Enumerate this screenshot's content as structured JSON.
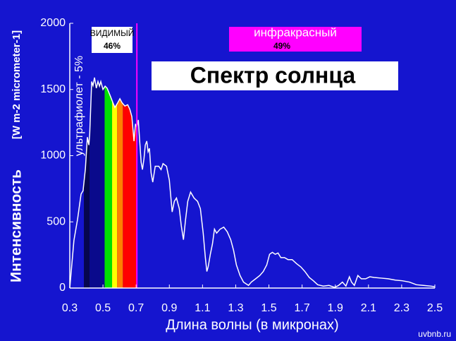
{
  "chart_data": {
    "type": "line",
    "title": "Спектр солнца",
    "xlabel": "Длина волны (в микронах)",
    "ylabel": "Интенсивность",
    "ylabel_units": "[W m-2 micrometer-1]",
    "annotations": {
      "visible": "ВИДИМЫЙ",
      "visible_pct": "46%",
      "infrared": "инфракрасный",
      "infrared_pct": "49%",
      "uv": "ультрафиолет - 5%"
    },
    "watermark": "uvbnb.ru",
    "xlim": [
      0.3,
      2.5
    ],
    "ylim": [
      0,
      2000
    ],
    "xticks": [
      0.3,
      0.5,
      0.7,
      0.9,
      1.1,
      1.3,
      1.5,
      1.7,
      1.9,
      2.1,
      2.3,
      2.5
    ],
    "yticks": [
      0,
      500,
      1000,
      1500,
      2000
    ],
    "bands": [
      {
        "from": 0.385,
        "to": 0.42,
        "color": "#06064e"
      },
      {
        "from": 0.42,
        "to": 0.51,
        "color": "#0a0a8c"
      },
      {
        "from": 0.51,
        "to": 0.555,
        "color": "#00e000"
      },
      {
        "from": 0.555,
        "to": 0.585,
        "color": "#ffff00"
      },
      {
        "from": 0.585,
        "to": 0.62,
        "color": "#ff8000"
      },
      {
        "from": 0.62,
        "to": 0.7,
        "color": "#ff0000"
      }
    ],
    "x": [
      0.3,
      0.325,
      0.347,
      0.368,
      0.38,
      0.394,
      0.406,
      0.415,
      0.42,
      0.432,
      0.44,
      0.449,
      0.46,
      0.47,
      0.479,
      0.487,
      0.5,
      0.513,
      0.525,
      0.543,
      0.56,
      0.572,
      0.589,
      0.602,
      0.615,
      0.632,
      0.649,
      0.662,
      0.674,
      0.687,
      0.696,
      0.704,
      0.713,
      0.72,
      0.73,
      0.738,
      0.747,
      0.755,
      0.764,
      0.772,
      0.78,
      0.79,
      0.8,
      0.815,
      0.836,
      0.85,
      0.862,
      0.883,
      0.9,
      0.917,
      0.93,
      0.943,
      0.96,
      0.972,
      0.985,
      0.998,
      1.011,
      1.028,
      1.049,
      1.07,
      1.087,
      1.104,
      1.117,
      1.126,
      1.134,
      1.147,
      1.16,
      1.172,
      1.185,
      1.206,
      1.228,
      1.249,
      1.27,
      1.287,
      1.304,
      1.326,
      1.347,
      1.377,
      1.394,
      1.42,
      1.445,
      1.466,
      1.487,
      1.504,
      1.521,
      1.538,
      1.555,
      1.572,
      1.594,
      1.615,
      1.64,
      1.666,
      1.692,
      1.717,
      1.743,
      1.768,
      1.794,
      1.828,
      1.862,
      1.896,
      1.92,
      1.943,
      1.964,
      1.985,
      1.998,
      2.015,
      2.036,
      2.057,
      2.083,
      2.108,
      2.134,
      2.177,
      2.219,
      2.262,
      2.304,
      2.347,
      2.389,
      2.43,
      2.474,
      2.5
    ],
    "series": [
      {
        "name": "Спектр",
        "color": "#ffffff",
        "values": [
          0,
          360,
          520,
          710,
          735,
          900,
          1140,
          1080,
          1160,
          1560,
          1530,
          1590,
          1510,
          1560,
          1525,
          1560,
          1500,
          1525,
          1510,
          1455,
          1400,
          1365,
          1400,
          1430,
          1400,
          1375,
          1385,
          1350,
          1295,
          1110,
          1240,
          1215,
          1270,
          1135,
          950,
          895,
          975,
          1080,
          1110,
          1030,
          1055,
          870,
          800,
          920,
          920,
          895,
          940,
          920,
          815,
          575,
          655,
          680,
          600,
          470,
          365,
          520,
          655,
          725,
          680,
          655,
          600,
          415,
          230,
          125,
          160,
          255,
          335,
          445,
          415,
          445,
          460,
          425,
          365,
          285,
          175,
          95,
          45,
          20,
          45,
          70,
          95,
          125,
          175,
          255,
          270,
          255,
          265,
          230,
          230,
          215,
          215,
          185,
          160,
          125,
          80,
          55,
          25,
          15,
          20,
          5,
          20,
          45,
          15,
          85,
          45,
          20,
          95,
          70,
          70,
          85,
          80,
          75,
          70,
          60,
          55,
          45,
          25,
          20,
          15,
          10
        ]
      }
    ]
  }
}
